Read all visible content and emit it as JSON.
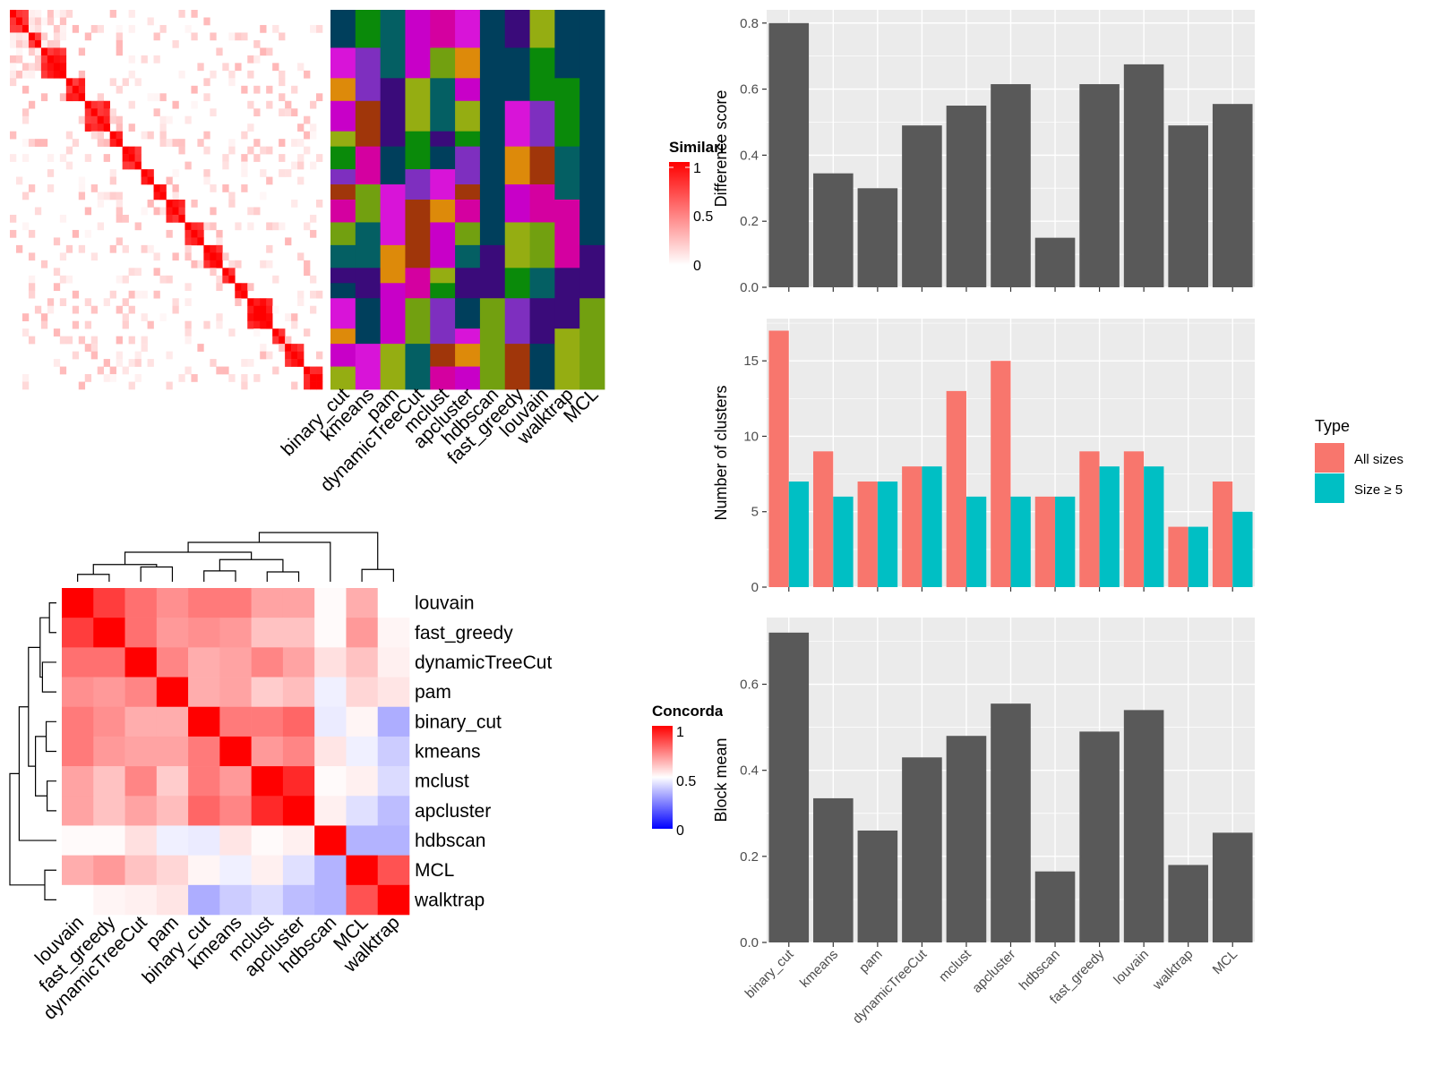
{
  "methods_order": [
    "binary_cut",
    "kmeans",
    "pam",
    "dynamicTreeCut",
    "mclust",
    "apcluster",
    "hdbscan",
    "fast_greedy",
    "louvain",
    "walktrap",
    "MCL"
  ],
  "similarity_legend": {
    "title": "Similarity",
    "ticks": [
      "1",
      "0.5",
      "0"
    ]
  },
  "concordance_legend": {
    "title": "Concordance",
    "ticks": [
      "1",
      "0.5",
      "0"
    ]
  },
  "colors": {
    "red": "#ff0000",
    "blue": "#0000ff",
    "bar_gray": "#595959",
    "panel_bg": "#ebebeb",
    "all_sizes": "#f8766d",
    "size_ge5": "#00bfc4",
    "assignment_palette": [
      "#003f5c",
      "#0a8a0a",
      "#045f63",
      "#c800c8",
      "#d400a0",
      "#d814d8",
      "#7e2fbf",
      "#3a0b7a",
      "#95ad12",
      "#72a010",
      "#dd8a0a",
      "#a0360a"
    ]
  },
  "assignment_columns": [
    "binary_cut",
    "kmeans",
    "pam",
    "dynamicTreeCut",
    "mclust",
    "apcluster",
    "hdbscan",
    "fast_greedy",
    "louvain",
    "walktrap",
    "MCL"
  ],
  "concordance_heatmap": {
    "labels": [
      "louvain",
      "fast_greedy",
      "dynamicTreeCut",
      "pam",
      "binary_cut",
      "kmeans",
      "mclust",
      "apcluster",
      "hdbscan",
      "MCL",
      "walktrap"
    ],
    "matrix": [
      [
        1.0,
        0.88,
        0.78,
        0.72,
        0.76,
        0.76,
        0.68,
        0.68,
        0.51,
        0.66,
        0.5
      ],
      [
        0.88,
        1.0,
        0.78,
        0.7,
        0.72,
        0.7,
        0.62,
        0.62,
        0.51,
        0.7,
        0.52
      ],
      [
        0.78,
        0.78,
        1.0,
        0.74,
        0.66,
        0.68,
        0.74,
        0.68,
        0.56,
        0.62,
        0.53
      ],
      [
        0.72,
        0.7,
        0.74,
        1.0,
        0.66,
        0.68,
        0.6,
        0.63,
        0.47,
        0.58,
        0.55
      ],
      [
        0.76,
        0.72,
        0.66,
        0.66,
        1.0,
        0.76,
        0.76,
        0.8,
        0.46,
        0.52,
        0.34
      ],
      [
        0.76,
        0.7,
        0.68,
        0.68,
        0.76,
        1.0,
        0.7,
        0.74,
        0.55,
        0.47,
        0.4
      ],
      [
        0.68,
        0.62,
        0.74,
        0.6,
        0.76,
        0.7,
        1.0,
        0.92,
        0.51,
        0.53,
        0.43
      ],
      [
        0.68,
        0.62,
        0.68,
        0.63,
        0.8,
        0.74,
        0.92,
        1.0,
        0.53,
        0.44,
        0.37
      ],
      [
        0.51,
        0.51,
        0.56,
        0.47,
        0.46,
        0.55,
        0.51,
        0.53,
        1.0,
        0.35,
        0.35
      ],
      [
        0.66,
        0.7,
        0.62,
        0.58,
        0.52,
        0.47,
        0.53,
        0.44,
        0.35,
        1.0,
        0.84
      ],
      [
        0.5,
        0.52,
        0.53,
        0.55,
        0.34,
        0.4,
        0.43,
        0.37,
        0.35,
        0.84,
        1.0
      ]
    ]
  },
  "chart_data": [
    {
      "type": "heatmap",
      "title": "",
      "legend_title": "Similarity",
      "description": "term similarity matrix ordered by clusters, with block-diagonal structure",
      "block_sizes": [
        3,
        2,
        4,
        3,
        4,
        2,
        3,
        2,
        2,
        3,
        3,
        3,
        2,
        2,
        4,
        2,
        3,
        3
      ],
      "range": [
        0,
        1
      ]
    },
    {
      "type": "heatmap",
      "title": "",
      "legend_title": "Concordance",
      "xlabels": [
        "louvain",
        "fast_greedy",
        "dynamicTreeCut",
        "pam",
        "binary_cut",
        "kmeans",
        "mclust",
        "apcluster",
        "hdbscan",
        "MCL",
        "walktrap"
      ],
      "ylabels": [
        "louvain",
        "fast_greedy",
        "dynamicTreeCut",
        "pam",
        "binary_cut",
        "kmeans",
        "mclust",
        "apcluster",
        "hdbscan",
        "MCL",
        "walktrap"
      ],
      "range": [
        0,
        1
      ]
    },
    {
      "type": "bar",
      "categories": [
        "binary_cut",
        "kmeans",
        "pam",
        "dynamicTreeCut",
        "mclust",
        "apcluster",
        "hdbscan",
        "fast_greedy",
        "louvain",
        "walktrap",
        "MCL"
      ],
      "values": [
        0.8,
        0.345,
        0.3,
        0.49,
        0.55,
        0.615,
        0.15,
        0.615,
        0.675,
        0.49,
        0.555
      ],
      "ylabel": "Difference score",
      "xlabel": "",
      "ylim": [
        0,
        0.84
      ],
      "yticks": [
        "0.0",
        "0.2",
        "0.4",
        "0.6",
        "0.8"
      ]
    },
    {
      "type": "bar",
      "categories": [
        "binary_cut",
        "kmeans",
        "pam",
        "dynamicTreeCut",
        "mclust",
        "apcluster",
        "hdbscan",
        "fast_greedy",
        "louvain",
        "walktrap",
        "MCL"
      ],
      "series": [
        {
          "name": "All sizes",
          "values": [
            17,
            9,
            7,
            8,
            13,
            15,
            6,
            9,
            9,
            4,
            7
          ]
        },
        {
          "name": "Size ≥ 5",
          "values": [
            7,
            6,
            7,
            8,
            6,
            6,
            6,
            8,
            8,
            4,
            5
          ]
        }
      ],
      "ylabel": "Number of clusters",
      "xlabel": "",
      "ylim": [
        0,
        17.8
      ],
      "yticks": [
        "0",
        "5",
        "10",
        "15"
      ],
      "legend_title": "Type",
      "legend_position": "right"
    },
    {
      "type": "bar",
      "categories": [
        "binary_cut",
        "kmeans",
        "pam",
        "dynamicTreeCut",
        "mclust",
        "apcluster",
        "hdbscan",
        "fast_greedy",
        "louvain",
        "walktrap",
        "MCL"
      ],
      "values": [
        0.72,
        0.335,
        0.26,
        0.43,
        0.48,
        0.555,
        0.165,
        0.49,
        0.54,
        0.18,
        0.255
      ],
      "ylabel": "Block mean",
      "xlabel": "",
      "ylim": [
        0,
        0.755
      ],
      "yticks": [
        "0.0",
        "0.2",
        "0.4",
        "0.6"
      ]
    }
  ]
}
